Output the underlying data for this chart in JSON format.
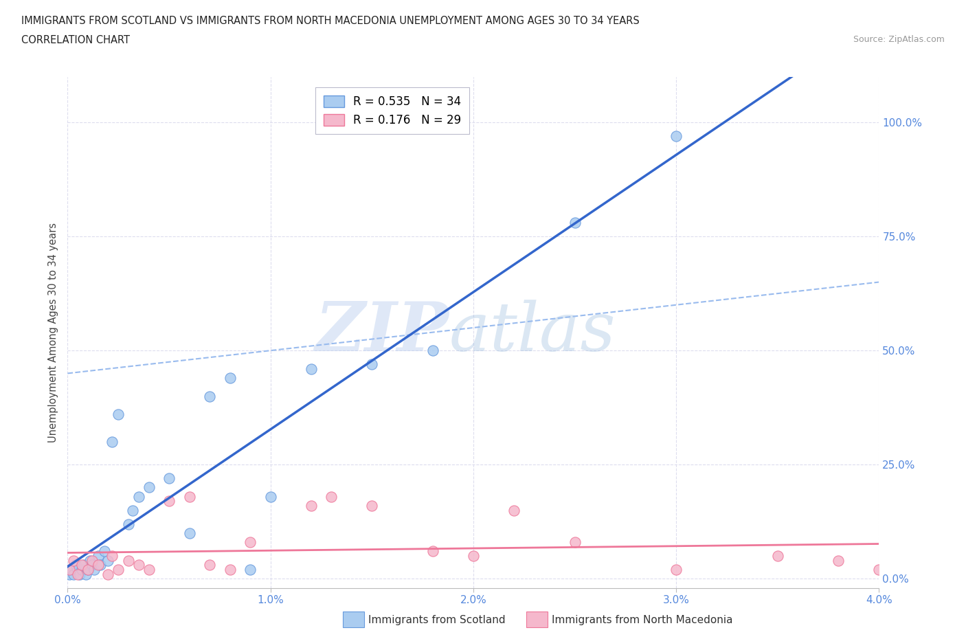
{
  "title_line1": "IMMIGRANTS FROM SCOTLAND VS IMMIGRANTS FROM NORTH MACEDONIA UNEMPLOYMENT AMONG AGES 30 TO 34 YEARS",
  "title_line2": "CORRELATION CHART",
  "source": "Source: ZipAtlas.com",
  "ylabel": "Unemployment Among Ages 30 to 34 years",
  "xlim": [
    0.0,
    0.04
  ],
  "ylim": [
    -0.02,
    1.1
  ],
  "xticks": [
    0.0,
    0.01,
    0.02,
    0.03,
    0.04
  ],
  "xtick_labels": [
    "0.0%",
    "1.0%",
    "2.0%",
    "3.0%",
    "4.0%"
  ],
  "yticks": [
    0.0,
    0.25,
    0.5,
    0.75,
    1.0
  ],
  "ytick_labels": [
    "0.0%",
    "25.0%",
    "50.0%",
    "75.0%",
    "100.0%"
  ],
  "scotland_R": 0.535,
  "scotland_N": 34,
  "macedonia_R": 0.176,
  "macedonia_N": 29,
  "scotland_color": "#AACCF0",
  "macedonia_color": "#F5B8CC",
  "scotland_edge_color": "#6699DD",
  "macedonia_edge_color": "#EE7799",
  "scotland_line_color": "#3366CC",
  "macedonia_line_color": "#EE7799",
  "dashed_line_color": "#99BBEE",
  "watermark_color": "#C8D8EE",
  "scotland_x": [
    0.0001,
    0.0002,
    0.0003,
    0.0004,
    0.0005,
    0.0006,
    0.0007,
    0.0008,
    0.0009,
    0.001,
    0.0011,
    0.0012,
    0.0013,
    0.0015,
    0.0016,
    0.0018,
    0.002,
    0.0022,
    0.0025,
    0.003,
    0.0032,
    0.0035,
    0.004,
    0.005,
    0.006,
    0.007,
    0.008,
    0.009,
    0.01,
    0.012,
    0.015,
    0.018,
    0.025,
    0.03
  ],
  "scotland_y": [
    0.01,
    0.02,
    0.01,
    0.03,
    0.02,
    0.01,
    0.02,
    0.03,
    0.01,
    0.02,
    0.04,
    0.03,
    0.02,
    0.05,
    0.03,
    0.06,
    0.04,
    0.3,
    0.36,
    0.12,
    0.15,
    0.18,
    0.2,
    0.22,
    0.1,
    0.4,
    0.44,
    0.02,
    0.18,
    0.46,
    0.47,
    0.5,
    0.78,
    0.97
  ],
  "macedonia_x": [
    0.0001,
    0.0003,
    0.0005,
    0.0007,
    0.001,
    0.0012,
    0.0015,
    0.002,
    0.0022,
    0.0025,
    0.003,
    0.0035,
    0.004,
    0.005,
    0.006,
    0.007,
    0.008,
    0.009,
    0.012,
    0.013,
    0.015,
    0.018,
    0.02,
    0.022,
    0.025,
    0.03,
    0.035,
    0.038,
    0.04
  ],
  "macedonia_y": [
    0.02,
    0.04,
    0.01,
    0.03,
    0.02,
    0.04,
    0.03,
    0.01,
    0.05,
    0.02,
    0.04,
    0.03,
    0.02,
    0.17,
    0.18,
    0.03,
    0.02,
    0.08,
    0.16,
    0.18,
    0.16,
    0.06,
    0.05,
    0.15,
    0.08,
    0.02,
    0.05,
    0.04,
    0.02
  ]
}
